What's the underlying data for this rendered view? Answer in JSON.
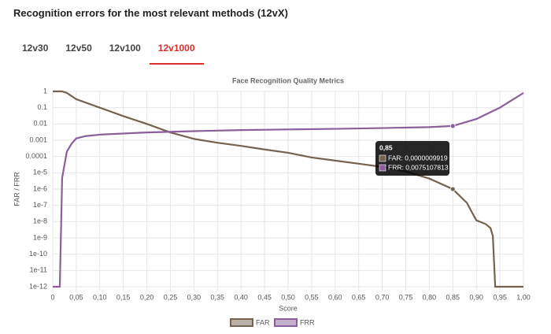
{
  "page": {
    "title": "Recognition errors for the most relevant methods (12vX)",
    "tabs": [
      "12v30",
      "12v50",
      "12v100",
      "12v1000"
    ],
    "active_tab": 3
  },
  "chart_data": {
    "type": "line",
    "title": "Face Recognition Quality Metrics",
    "x_label": "Score",
    "y_label": "FAR / FRR",
    "log_y": true,
    "grid": true,
    "legend": "bottom",
    "xlim": [
      0,
      1
    ],
    "xticks": [
      0,
      {
        "value": 0.05,
        "label": "0,05"
      },
      {
        "value": 0.1,
        "label": "0,10"
      },
      {
        "value": 0.15,
        "label": "0,15"
      },
      {
        "value": 0.2,
        "label": "0,20"
      },
      {
        "value": 0.25,
        "label": "0,25"
      },
      {
        "value": 0.3,
        "label": "0,30"
      },
      {
        "value": 0.35,
        "label": "0,35"
      },
      {
        "value": 0.4,
        "label": "0,40"
      },
      {
        "value": 0.45,
        "label": "0,45"
      },
      {
        "value": 0.5,
        "label": "0,50"
      },
      {
        "value": 0.55,
        "label": "0,55"
      },
      {
        "value": 0.6,
        "label": "0,60"
      },
      {
        "value": 0.65,
        "label": "0,65"
      },
      {
        "value": 0.7,
        "label": "0,70"
      },
      {
        "value": 0.75,
        "label": "0,75"
      },
      {
        "value": 0.8,
        "label": "0,80"
      },
      {
        "value": 0.85,
        "label": "0,85"
      },
      {
        "value": 0.9,
        "label": "0,90"
      },
      {
        "value": 0.95,
        "label": "0,95"
      },
      {
        "value": 1,
        "label": "1,00"
      }
    ],
    "ylim": [
      1e-12,
      1
    ],
    "yticks": [
      1,
      0.1,
      0.01,
      0.001,
      0.0001,
      {
        "value": 1e-05,
        "label": "1e-5"
      },
      {
        "value": 1e-06,
        "label": "1e-6"
      },
      {
        "value": 1e-07,
        "label": "1e-7"
      },
      {
        "value": 1e-08,
        "label": "1e-8"
      },
      {
        "value": 1e-09,
        "label": "1e-9"
      },
      {
        "value": 1e-10,
        "label": "1e-10"
      },
      {
        "value": 1e-11,
        "label": "1e-11"
      },
      {
        "value": 1e-12,
        "label": "1e-12"
      }
    ],
    "series": [
      {
        "name": "FAR",
        "color": "#75624f",
        "x": [
          0,
          0.02,
          0.03,
          0.05,
          0.1,
          0.15,
          0.2,
          0.25,
          0.3,
          0.35,
          0.4,
          0.45,
          0.5,
          0.55,
          0.6,
          0.65,
          0.7,
          0.75,
          0.8,
          0.85,
          0.88,
          0.89,
          0.9,
          0.92,
          0.93,
          0.935,
          0.94,
          1
        ],
        "values": [
          1,
          1,
          0.8,
          0.33,
          0.1,
          0.03,
          0.01,
          0.003,
          0.0012,
          0.0007,
          0.00045,
          0.00027,
          0.00017,
          8.7e-05,
          5.6e-05,
          3.6e-05,
          2.3e-05,
          1.2e-05,
          4.4e-06,
          9.919e-07,
          1.4e-07,
          4e-08,
          1.2e-08,
          7e-09,
          4e-09,
          1.3e-09,
          1e-12,
          1e-12
        ]
      },
      {
        "name": "FRR",
        "color": "#8a5f9c",
        "x": [
          0,
          0.015,
          0.02,
          0.03,
          0.04,
          0.05,
          0.07,
          0.1,
          0.2,
          0.3,
          0.4,
          0.5,
          0.6,
          0.7,
          0.8,
          0.85,
          0.9,
          0.95,
          1
        ],
        "values": [
          1e-12,
          1e-12,
          5e-06,
          0.0002,
          0.0006,
          0.0013,
          0.0018,
          0.0022,
          0.003,
          0.0036,
          0.0042,
          0.0046,
          0.005,
          0.0056,
          0.0064,
          0.0075107813,
          0.02,
          0.1,
          0.8
        ]
      }
    ],
    "highlight": {
      "value": 0.85,
      "label": "0,85"
    },
    "tooltip_lines": [
      "FAR: 0,0000009919",
      "FRR: 0,0075107813"
    ]
  }
}
